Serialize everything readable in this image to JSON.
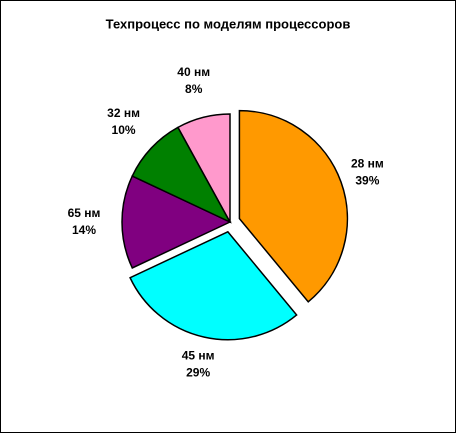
{
  "chart_data": {
    "type": "pie",
    "title": "Техпроцесс по моделям процессоров",
    "categories": [
      "28 нм",
      "45 нм",
      "65 нм",
      "32 нм",
      "40 нм"
    ],
    "values": [
      39,
      29,
      14,
      10,
      8
    ],
    "value_labels": [
      "39%",
      "29%",
      "14%",
      "10%",
      "8%"
    ],
    "colors": [
      "#ff9900",
      "#00ffff",
      "#800080",
      "#008000",
      "#ff99cc"
    ],
    "exploded": [
      true,
      true,
      false,
      false,
      false
    ]
  }
}
